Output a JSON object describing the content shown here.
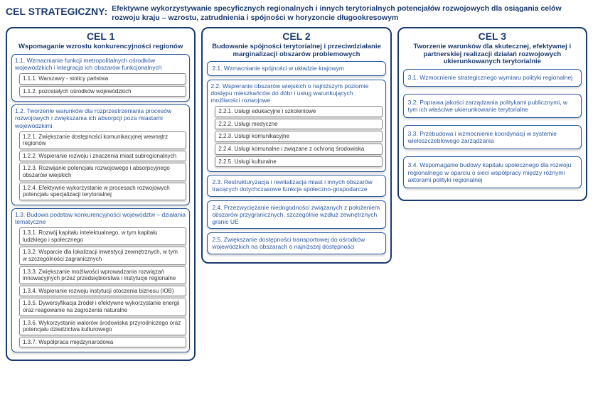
{
  "header": {
    "label": "CEL STRATEGICZNY:",
    "text": "Efektywne wykorzystywanie specyficznych regionalnych i innych terytorialnych potencjałów rozwojowych dla osiągania celów rozwoju kraju – wzrostu, zatrudnienia i spójności w horyzoncie długookresowym"
  },
  "styling": {
    "border_color": "#1a3a6e",
    "text_color": "#1a3a6e",
    "group_border_color": "#2a58a0",
    "sub_border_color": "#888888",
    "background": "#ffffff",
    "col_border_radius": 10,
    "group_border_radius": 6,
    "title_fontsize": 14,
    "subtitle_fontsize": 9.5,
    "body_fontsize": 8.5
  },
  "columns": [
    {
      "title": "CEL 1",
      "subtitle": "Wspomaganie wzrostu konkurencyjności regionów",
      "groups": [
        {
          "label": "1.1. Wzmacnianie funkcji metropolitalnych ośrodków wojewódzkich i integracja ich obszarów funkcjonalnych",
          "subs": [
            "1.1.1. Warszawy - stolicy państwa",
            "1.1.2. pozostałych ośrodków wojewódzkich"
          ]
        },
        {
          "label": "1.2. Tworzenie warunków dla rozprzestrzeniania procesów rozwojowych i zwiększania ich absorpcji poza miastami wojewódzkimi",
          "subs": [
            "1.2.1. Zwiększanie dostępności komunikacyjnej wewnątrz regionów",
            "1.2.2. Wspieranie rozwoju i znaczenia miast subregionalnych",
            "1.2.3. Rozwijanie potencjału rozwojowego i absorpcyjnego obszarów wiejskich",
            "1.2.4. Efektywne wykorzystanie w procesach rozwojowych potencjału specjalizacji terytorialnej"
          ]
        },
        {
          "label": "1.3. Budowa podstaw konkurencyjności województw – działania tematyczne",
          "subs": [
            "1.3.1. Rozwój kapitału intelektualnego, w tym kapitału ludzkiego i społecznego",
            "1.3.2. Wsparcie dla lokalizacji inwestycji zewnętrznych, w tym w szczególności zagranicznych",
            "1.3.3. Zwiększanie możliwości wprowadzania rozwiązań innowacyjnych przez przedsiębiorstwa i instytucje regionalne",
            "1.3.4. Wspieranie rozwoju instytucji otoczenia biznesu (IOB)",
            "1.3.5. Dywersyfikacja źródeł i efektywne wykorzystanie energii oraz reagowanie na zagrożenia naturalne",
            "1.3.6. Wykorzystanie walorów środowiska przyrodniczego oraz potencjału dziedzictwa kulturowego",
            "1.3.7. Współpraca międzynarodowa"
          ]
        }
      ]
    },
    {
      "title": "CEL 2",
      "subtitle": "Budowanie spójności terytorialnej i przeciwdziałanie marginalizacji obszarów problemowych",
      "groups": [
        {
          "label": "2.1. Wzmacnianie spójności w układzie krajowym",
          "subs": []
        },
        {
          "label": "2.2. Wspieranie obszarów wiejskich o najniższym poziomie dostępu mieszkańców do dóbr i usług warunkujących możliwości rozwojowe",
          "subs": [
            "2.2.1. Usługi edukacyjne i szkoleniowe",
            "2.2.2. Usługi medyczne",
            "2.2.3. Usługi komunikacyjne",
            "2.2.4. Usługi komunalne i związane z ochroną środowiska",
            "2.2.5. Usługi kulturalne"
          ]
        },
        {
          "label": "2.3. Restrukturyzacja i rewitalizacja miast i innych obszarów tracących dotychczasowe funkcje społeczno-gospodarcze",
          "subs": []
        },
        {
          "label": "2.4. Przezwyciężanie niedogodności związanych z położeniem obszarów przygranicznych, szczególnie wzdłuż zewnętrznych granic UE",
          "subs": []
        },
        {
          "label": "2.5. Zwiększanie dostępności transportowej do ośrodków wojewódzkich na obszarach o najniższej dostępności",
          "subs": []
        }
      ]
    },
    {
      "title": "CEL 3",
      "subtitle": "Tworzenie warunków dla skutecznej, efektywnej i partnerskiej realizacji działań rozwojowych ukierunkowanych terytorialnie",
      "items": [
        "3.1. Wzmocnienie strategicznego wymiaru polityki regionalnej",
        "3.2. Poprawa jakości zarządzania politykami publicznymi, w tym ich właściwe ukierunkowanie terytorialne",
        "3.3. Przebudowa i wzmocnienie koordynacji w systemie wieloszczeblowego zarządzania",
        "3.4. Wspomaganie budowy kapitału społecznego dla rozwoju regionalnego w oparciu o sieci współpracy między różnymi aktorami polityki regionalnej"
      ]
    }
  ]
}
